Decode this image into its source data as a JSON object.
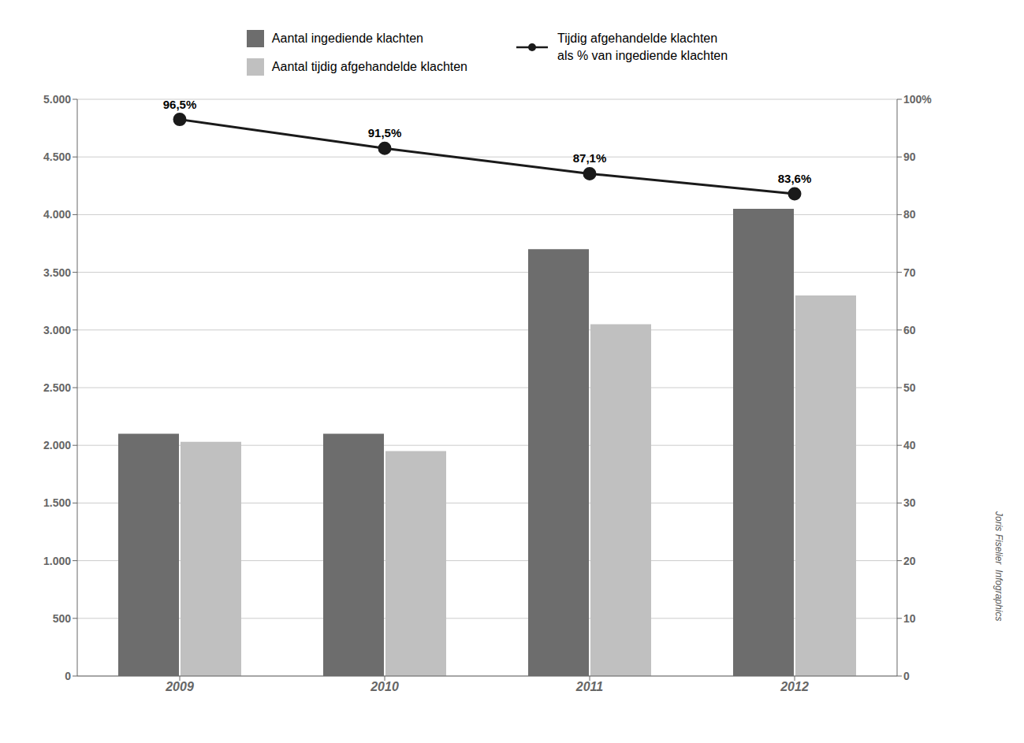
{
  "chart_data": {
    "type": "bar",
    "categories": [
      "2009",
      "2010",
      "2011",
      "2012"
    ],
    "series": [
      {
        "name": "Aantal ingediende klachten",
        "color": "#6d6d6d",
        "values": [
          2100,
          2100,
          3700,
          4050
        ]
      },
      {
        "name": "Aantal tijdig afgehandelde klachten",
        "color": "#c0c0c0",
        "values": [
          2030,
          1950,
          3050,
          3300
        ]
      },
      {
        "name": "Tijdig afgehandelde klachten\nals % van ingediende klachten",
        "type": "line",
        "axis": "y2",
        "color": "#1a1a1a",
        "marker": "circle",
        "data_labels": true,
        "values": [
          96.5,
          91.5,
          87.1,
          83.6
        ],
        "value_labels": [
          "96,5%",
          "91,5%",
          "87,1%",
          "83,6%"
        ]
      }
    ],
    "ylim": [
      0,
      5000
    ],
    "yticks": [
      0,
      500,
      {
        "value": 1000,
        "label": "1.000"
      },
      {
        "value": 1500,
        "label": "1.500"
      },
      {
        "value": 2000,
        "label": "2.000"
      },
      {
        "value": 2500,
        "label": "2.500"
      },
      {
        "value": 3000,
        "label": "3.000"
      },
      {
        "value": 3500,
        "label": "3.500"
      },
      {
        "value": 4000,
        "label": "4.000"
      },
      {
        "value": 4500,
        "label": "4.500"
      },
      {
        "value": 5000,
        "label": "5.000"
      }
    ],
    "y2lim": [
      0,
      100
    ],
    "y2ticks": [
      0,
      10,
      20,
      30,
      40,
      50,
      60,
      70,
      80,
      90,
      {
        "value": 100,
        "label": "100%"
      }
    ],
    "grid": true,
    "legend": "top",
    "annotations": [
      "Joris Fiselier  Infographics"
    ]
  }
}
